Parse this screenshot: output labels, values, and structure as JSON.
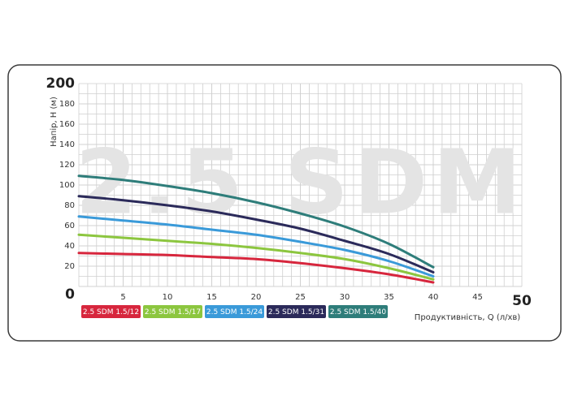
{
  "chart_data": {
    "type": "line",
    "watermark": "2.5 SDM",
    "ylabel": "Напір, Н (м)",
    "xlabel": "Продуктивність, Q (л/хв)",
    "x": [
      0,
      5,
      10,
      15,
      20,
      25,
      30,
      35,
      40
    ],
    "xlim": [
      0,
      50
    ],
    "xticks": [
      5,
      10,
      15,
      20,
      25,
      30,
      35,
      40,
      45,
      50
    ],
    "ylim": [
      0,
      200
    ],
    "yticks": [
      0,
      20,
      40,
      60,
      80,
      100,
      120,
      140,
      160,
      180,
      200
    ],
    "grid": true,
    "series": [
      {
        "name": "2.5 SDM 1.5/12",
        "color": "#d7263d",
        "values": [
          33,
          32,
          31,
          29,
          27,
          23,
          18,
          12,
          4
        ]
      },
      {
        "name": "2.5 SDM 1.5/17",
        "color": "#8cc63f",
        "values": [
          51,
          48,
          45,
          42,
          38,
          33,
          27,
          18,
          7
        ]
      },
      {
        "name": "2.5 SDM 1.5/24",
        "color": "#3a9ad9",
        "values": [
          69,
          65,
          61,
          56,
          51,
          44,
          36,
          25,
          10
        ]
      },
      {
        "name": "2.5 SDM 1.5/31",
        "color": "#2b2a5a",
        "values": [
          89,
          85,
          80,
          74,
          66,
          57,
          45,
          32,
          14
        ]
      },
      {
        "name": "2.5 SDM 1.5/40",
        "color": "#2e7d7a",
        "values": [
          109,
          105,
          99,
          92,
          83,
          72,
          59,
          42,
          19
        ]
      }
    ]
  }
}
